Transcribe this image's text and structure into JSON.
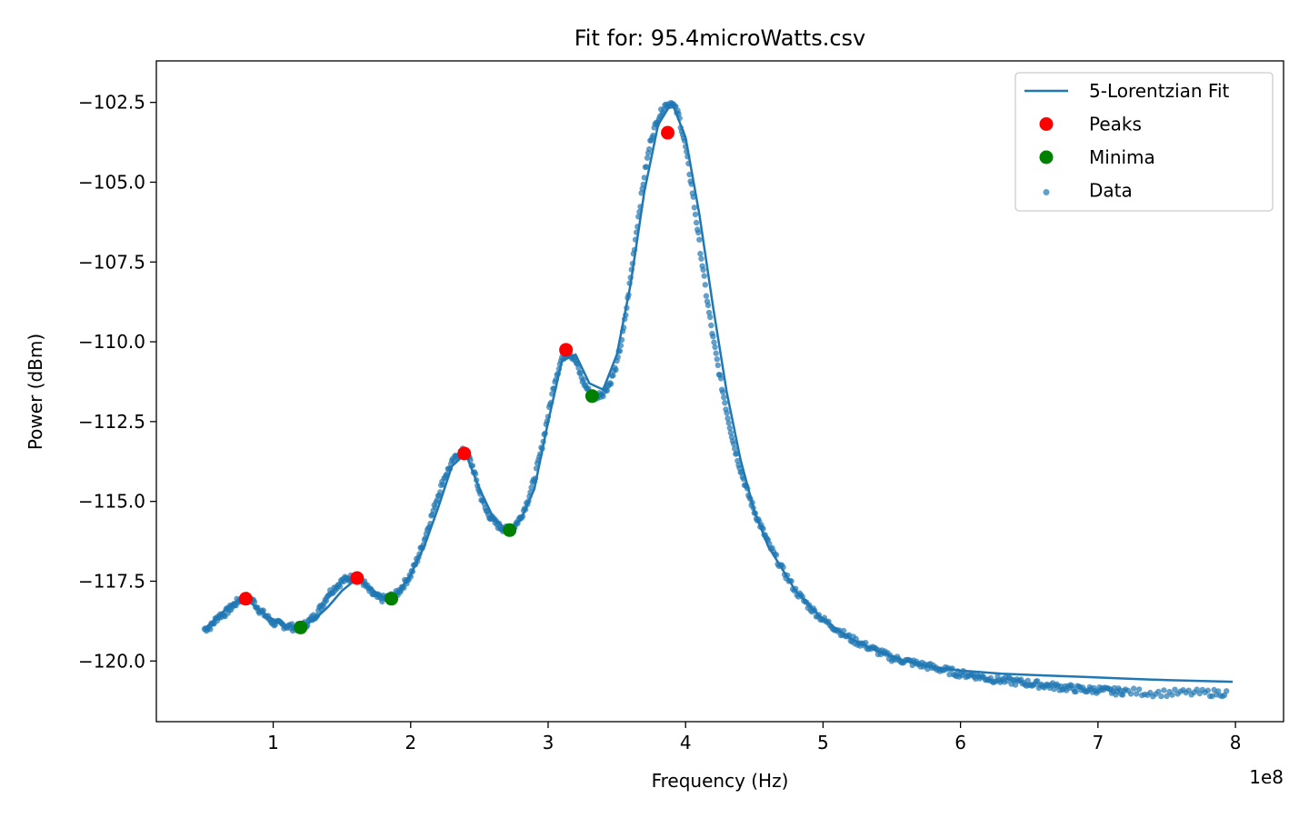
{
  "chart_data": {
    "type": "scatter",
    "title": "Fit for: 95.4microWatts.csv",
    "xlabel": "Frequency (Hz)",
    "ylabel": "Power (dBm)",
    "x_scale_label": "1e8",
    "x_unit_scale": 100000000,
    "xlim": [
      0.15,
      8.35
    ],
    "ylim": [
      -121.9,
      -101.2
    ],
    "x_ticks": [
      1,
      2,
      3,
      4,
      5,
      6,
      7,
      8
    ],
    "x_tick_labels": [
      "1",
      "2",
      "3",
      "4",
      "5",
      "6",
      "7",
      "8"
    ],
    "y_ticks": [
      -120.0,
      -117.5,
      -115.0,
      -112.5,
      -110.0,
      -107.5,
      -105.0,
      -102.5
    ],
    "y_tick_labels": [
      "−120.0",
      "−117.5",
      "−115.0",
      "−112.5",
      "−110.0",
      "−107.5",
      "−105.0",
      "−102.5"
    ],
    "grid": false,
    "legend_position": "top-right",
    "colors": {
      "fit": "#1f77b4",
      "data": "#1f77b4",
      "peaks": "#ff0000",
      "minima": "#008000"
    },
    "series": [
      {
        "name": "5-Lorentzian Fit",
        "kind": "line",
        "x": [
          0.5,
          0.6,
          0.7,
          0.8,
          0.9,
          1.0,
          1.1,
          1.2,
          1.3,
          1.4,
          1.5,
          1.6,
          1.7,
          1.8,
          1.9,
          2.0,
          2.1,
          2.2,
          2.3,
          2.4,
          2.5,
          2.6,
          2.7,
          2.8,
          2.9,
          3.0,
          3.1,
          3.2,
          3.3,
          3.4,
          3.5,
          3.6,
          3.7,
          3.8,
          3.9,
          4.0,
          4.1,
          4.2,
          4.3,
          4.4,
          4.5,
          4.6,
          4.8,
          5.0,
          5.2,
          5.4,
          5.6,
          5.8,
          6.0,
          6.3,
          6.6,
          6.9,
          7.2,
          7.5,
          7.98
        ],
        "y": [
          -119.0,
          -118.6,
          -118.2,
          -118.05,
          -118.4,
          -118.7,
          -118.9,
          -118.95,
          -118.7,
          -118.3,
          -117.8,
          -117.45,
          -117.7,
          -118.0,
          -117.9,
          -117.3,
          -116.4,
          -115.2,
          -113.9,
          -113.5,
          -114.6,
          -115.5,
          -115.9,
          -115.6,
          -114.6,
          -112.5,
          -110.6,
          -110.4,
          -111.3,
          -111.5,
          -110.4,
          -108.2,
          -105.3,
          -103.2,
          -102.5,
          -103.6,
          -106.0,
          -108.9,
          -111.6,
          -113.7,
          -115.3,
          -116.4,
          -117.8,
          -118.7,
          -119.3,
          -119.7,
          -120.0,
          -120.2,
          -120.3,
          -120.4,
          -120.45,
          -120.5,
          -120.55,
          -120.6,
          -120.65
        ]
      },
      {
        "name": "Peaks",
        "kind": "markers",
        "x": [
          0.8,
          1.61,
          2.39,
          3.13,
          3.87
        ],
        "y": [
          -118.05,
          -117.4,
          -113.5,
          -110.25,
          -103.45
        ]
      },
      {
        "name": "Minima",
        "kind": "markers",
        "x": [
          1.2,
          1.86,
          2.72,
          3.32
        ],
        "y": [
          -118.95,
          -118.05,
          -115.9,
          -111.7
        ]
      },
      {
        "name": "Data",
        "kind": "scatter",
        "x": [
          0.5,
          0.55,
          0.6,
          0.65,
          0.7,
          0.75,
          0.8,
          0.85,
          0.9,
          0.95,
          1.0,
          1.05,
          1.1,
          1.15,
          1.2,
          1.25,
          1.3,
          1.35,
          1.4,
          1.45,
          1.5,
          1.55,
          1.6,
          1.65,
          1.7,
          1.75,
          1.8,
          1.85,
          1.9,
          1.95,
          2.0,
          2.05,
          2.1,
          2.15,
          2.2,
          2.25,
          2.3,
          2.35,
          2.4,
          2.45,
          2.5,
          2.55,
          2.6,
          2.65,
          2.7,
          2.75,
          2.8,
          2.85,
          2.9,
          2.95,
          3.0,
          3.05,
          3.1,
          3.15,
          3.2,
          3.25,
          3.3,
          3.35,
          3.4,
          3.45,
          3.5,
          3.55,
          3.6,
          3.65,
          3.7,
          3.75,
          3.8,
          3.85,
          3.9,
          3.95,
          4.0,
          4.05,
          4.1,
          4.15,
          4.2,
          4.25,
          4.3,
          4.35,
          4.4,
          4.45,
          4.5,
          4.55,
          4.6,
          4.7,
          4.8,
          4.9,
          5.0,
          5.1,
          5.2,
          5.3,
          5.4,
          5.5,
          5.6,
          5.7,
          5.8,
          5.9,
          6.0,
          6.1,
          6.2,
          6.3,
          6.4,
          6.5,
          6.6,
          6.7,
          6.8,
          6.9,
          7.0,
          7.1,
          7.2,
          7.4,
          7.6,
          7.8,
          7.95
        ],
        "y": [
          -119.0,
          -118.9,
          -118.6,
          -118.5,
          -118.3,
          -118.1,
          -118.0,
          -118.1,
          -118.4,
          -118.6,
          -118.8,
          -118.85,
          -118.9,
          -118.95,
          -118.95,
          -118.8,
          -118.6,
          -118.3,
          -117.9,
          -117.7,
          -117.5,
          -117.4,
          -117.4,
          -117.5,
          -117.8,
          -118.0,
          -118.05,
          -118.0,
          -117.9,
          -117.6,
          -117.3,
          -116.8,
          -116.2,
          -115.5,
          -114.8,
          -114.2,
          -113.8,
          -113.5,
          -113.4,
          -113.9,
          -114.7,
          -115.3,
          -115.6,
          -115.8,
          -115.9,
          -115.8,
          -115.5,
          -115.0,
          -114.3,
          -113.4,
          -112.3,
          -111.2,
          -110.5,
          -110.3,
          -110.6,
          -111.2,
          -111.6,
          -111.7,
          -111.6,
          -111.3,
          -110.7,
          -109.6,
          -108.0,
          -106.3,
          -104.8,
          -103.6,
          -103.0,
          -102.6,
          -102.5,
          -102.9,
          -103.9,
          -105.3,
          -106.9,
          -108.5,
          -109.9,
          -111.1,
          -112.2,
          -113.2,
          -114.0,
          -114.7,
          -115.3,
          -115.8,
          -116.3,
          -117.1,
          -117.8,
          -118.3,
          -118.7,
          -119.0,
          -119.3,
          -119.5,
          -119.7,
          -119.9,
          -120.0,
          -120.1,
          -120.2,
          -120.3,
          -120.4,
          -120.45,
          -120.55,
          -120.6,
          -120.65,
          -120.7,
          -120.75,
          -120.8,
          -120.85,
          -120.9,
          -120.9,
          -120.95,
          -120.95,
          -121.0,
          -121.0,
          -121.0,
          -121.0
        ]
      }
    ]
  }
}
